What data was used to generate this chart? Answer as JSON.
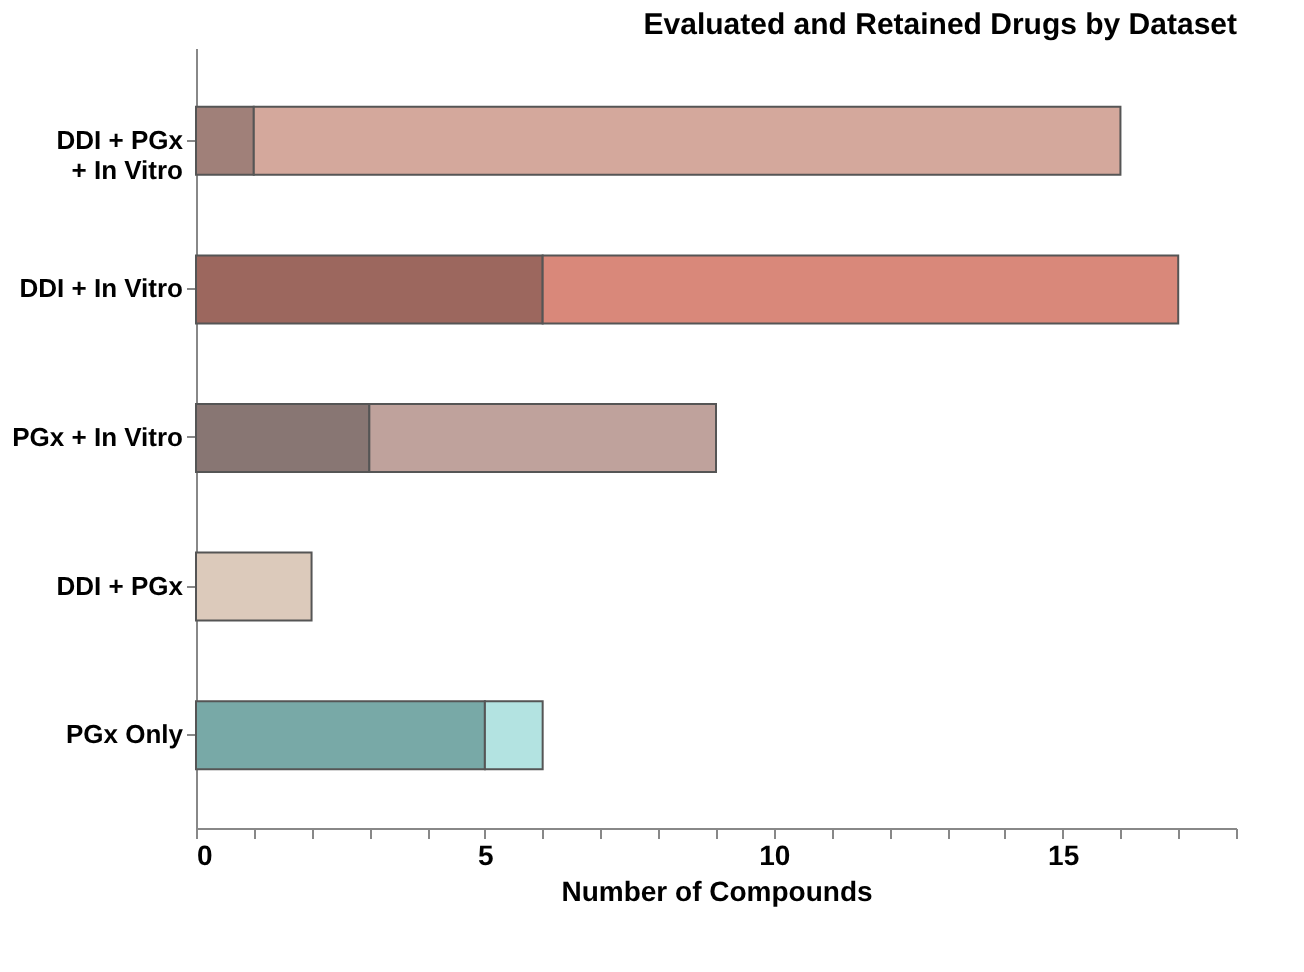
{
  "chart_data": {
    "type": "bar",
    "orientation": "horizontal",
    "stacked": true,
    "title": "Evaluated and  Retained Drugs by  Dataset",
    "xlabel": "Number of  Compounds",
    "categories": [
      "DDI + PGx\n+ In Vitro",
      "DDI + In Vitro",
      "PGx + In Vitro",
      "DDI + PGx",
      "PGx Only"
    ],
    "series": [
      {
        "colors": [
          "#a08079",
          "#9c675e",
          "#887673",
          null,
          "#78a9a7"
        ],
        "values": [
          1,
          6,
          3,
          null,
          5
        ]
      },
      {
        "colors": [
          "#d4a89c",
          "#d9887a",
          "#bfa29c",
          "#dccabb",
          "#b3e3e1"
        ],
        "values": [
          15,
          11,
          6,
          2,
          1
        ]
      }
    ],
    "xlim": [
      0,
      18
    ],
    "xticks": [
      0,
      {
        "value": 1,
        "label": null
      },
      {
        "value": 2,
        "label": null
      },
      {
        "value": 3,
        "label": null
      },
      {
        "value": 4,
        "label": null
      },
      5,
      {
        "value": 6,
        "label": null
      },
      {
        "value": 7,
        "label": null
      },
      {
        "value": 8,
        "label": null
      },
      {
        "value": 9,
        "label": null
      },
      10,
      {
        "value": 11,
        "label": null
      },
      {
        "value": 12,
        "label": null
      },
      {
        "value": 13,
        "label": null
      },
      {
        "value": 14,
        "label": null
      },
      15,
      {
        "value": 16,
        "label": null
      },
      {
        "value": 17,
        "label": null
      },
      {
        "value": 18,
        "label": null
      }
    ],
    "grid": false,
    "legend": false
  }
}
